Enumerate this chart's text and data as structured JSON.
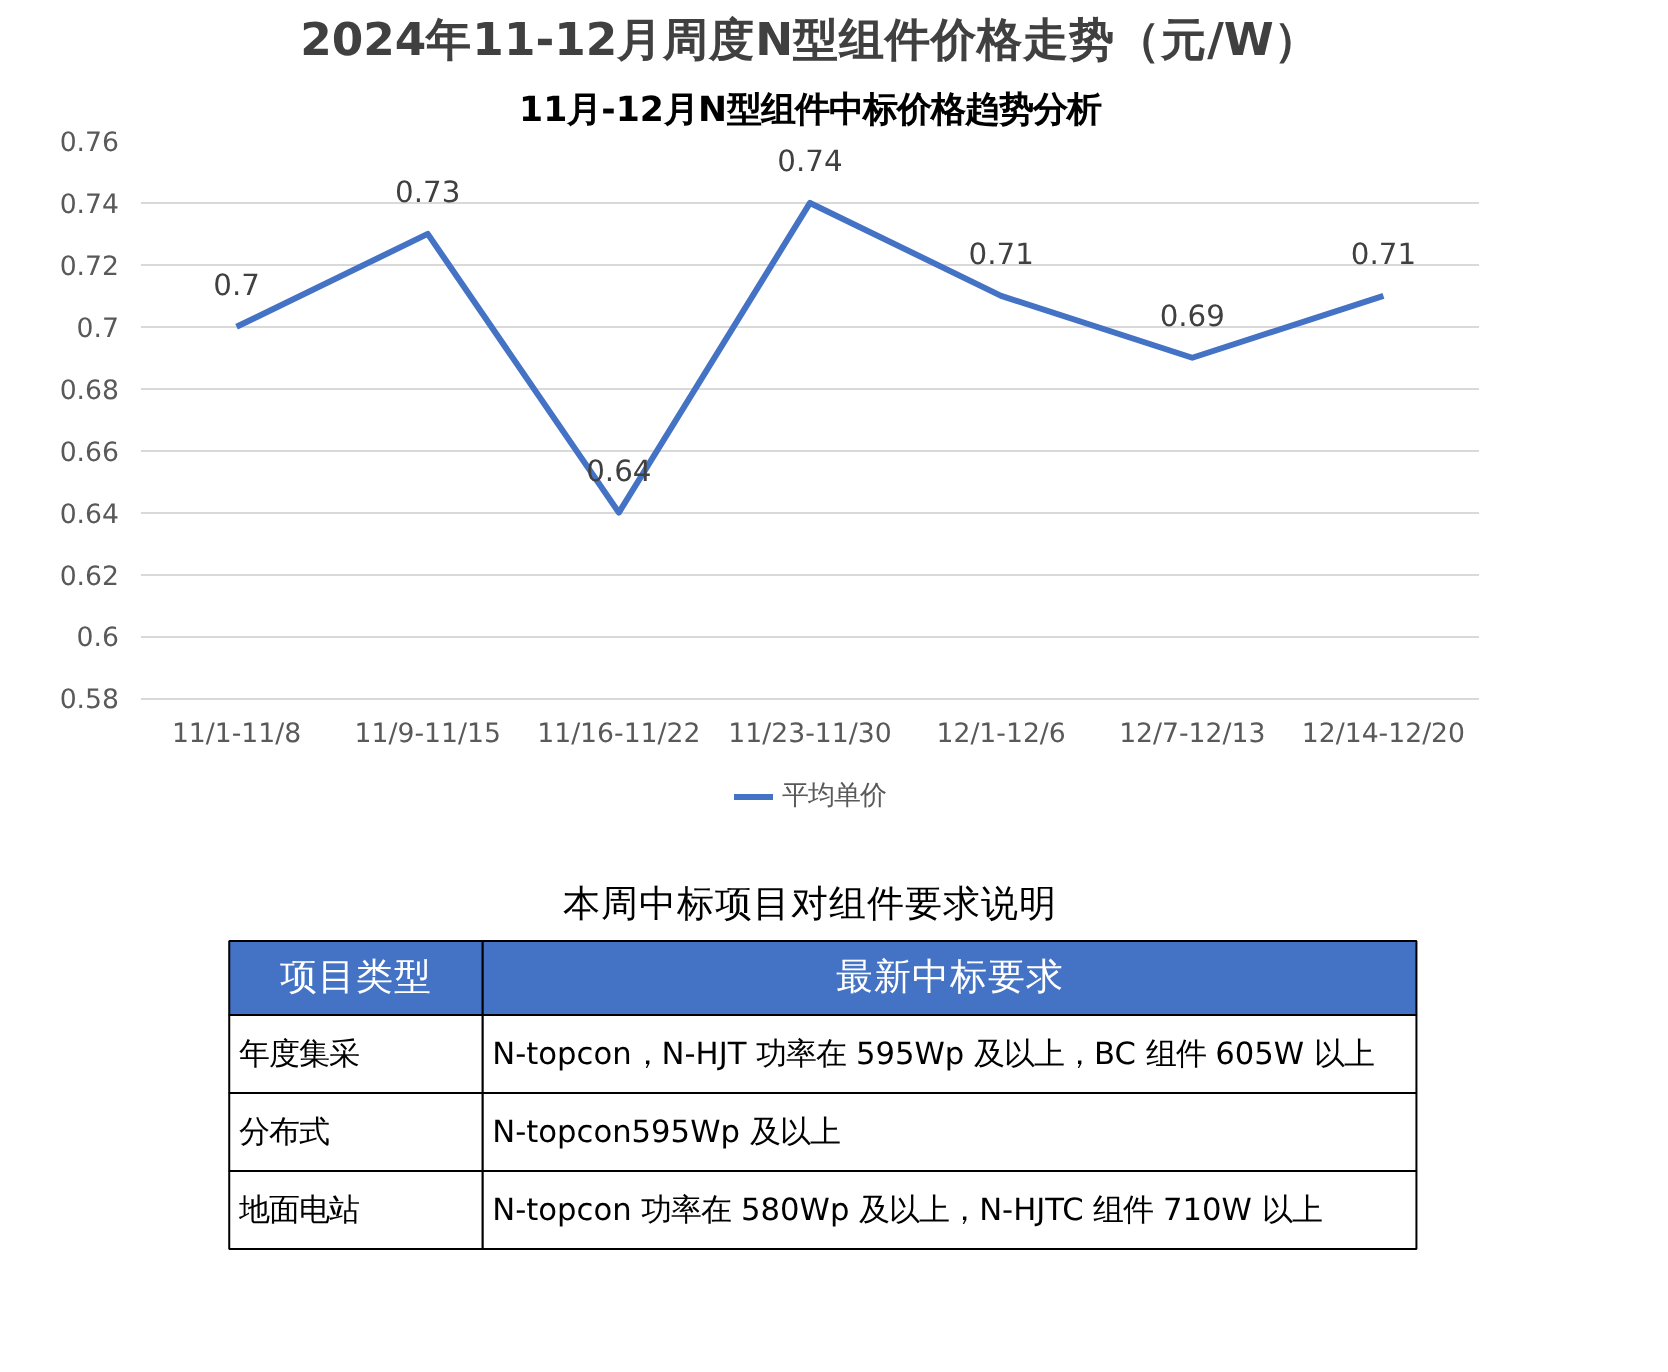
{
  "chart_data": [
    {
      "type": "line",
      "title": "2024年11-12月周度N型组件价格走势（元/W）",
      "annotations": [
        "11月-12月N型组件中标价格趋势分析"
      ],
      "categories": [
        "11/1-11/8",
        "11/9-11/15",
        "11/16-11/22",
        "11/23-11/30",
        "12/1-12/6",
        "12/7-12/13",
        "12/14-12/20"
      ],
      "series": [
        {
          "name": "平均单价",
          "color": "#4472c4",
          "values": [
            0.7,
            0.73,
            0.64,
            0.74,
            0.71,
            0.69,
            0.71
          ]
        }
      ],
      "ylim": [
        0.58,
        0.76
      ],
      "yticks": [
        {
          "value": 0.58,
          "label": "0.58"
        },
        {
          "value": 0.6,
          "label": "0.6"
        },
        {
          "value": 0.62,
          "label": "0.62"
        },
        {
          "value": 0.64,
          "label": "0.64"
        },
        {
          "value": 0.66,
          "label": "0.66"
        },
        {
          "value": 0.68,
          "label": "0.68"
        },
        {
          "value": 0.7,
          "label": "0.7"
        },
        {
          "value": 0.72,
          "label": "0.72"
        },
        {
          "value": 0.74,
          "label": "0.74"
        },
        {
          "value": 0.76,
          "label": "0.76"
        }
      ],
      "grid": "y",
      "legend": "bottom",
      "data_labels": true,
      "marker": "none",
      "line_style": "solid"
    },
    {
      "type": "other",
      "title": "本周中标项目对组件要求说明",
      "annotations": [
        "项目类型",
        "最新中标要求",
        "年度集采",
        "N-topcon，N-HJT 功率在 595Wp 及以上，BC 组件 605W 以上",
        "分布式",
        "N-topcon595Wp 及以上",
        "地面电站",
        "N-topcon 功率在 580Wp 及以上，N-HJTC 组件 710W 以上"
      ]
    }
  ]
}
